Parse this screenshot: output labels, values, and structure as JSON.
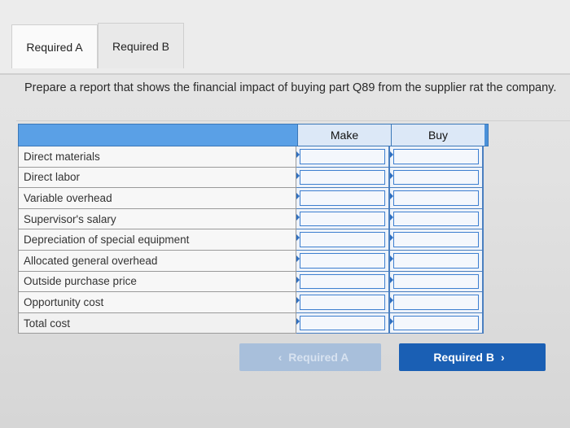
{
  "tabs": [
    {
      "label": "Required A",
      "active": true
    },
    {
      "label": "Required B",
      "active": false
    }
  ],
  "instruction": "Prepare a report that shows the financial impact of buying part Q89 from the supplier rat the company.",
  "table": {
    "columns": [
      "Make",
      "Buy"
    ],
    "rows": [
      "Direct materials",
      "Direct labor",
      "Variable overhead",
      "Supervisor's salary",
      "Depreciation of special equipment",
      "Allocated general overhead",
      "Outside purchase price",
      "Opportunity cost",
      "Total cost"
    ]
  },
  "nav": {
    "prev_label": "Required A",
    "prev_icon": "chevron-left-icon",
    "next_label": "Required B",
    "next_icon": "chevron-right-icon"
  },
  "colors": {
    "header_blue": "#4a90d9",
    "next_button": "#1a5fb4",
    "prev_button_disabled": "#a8bfdb"
  }
}
